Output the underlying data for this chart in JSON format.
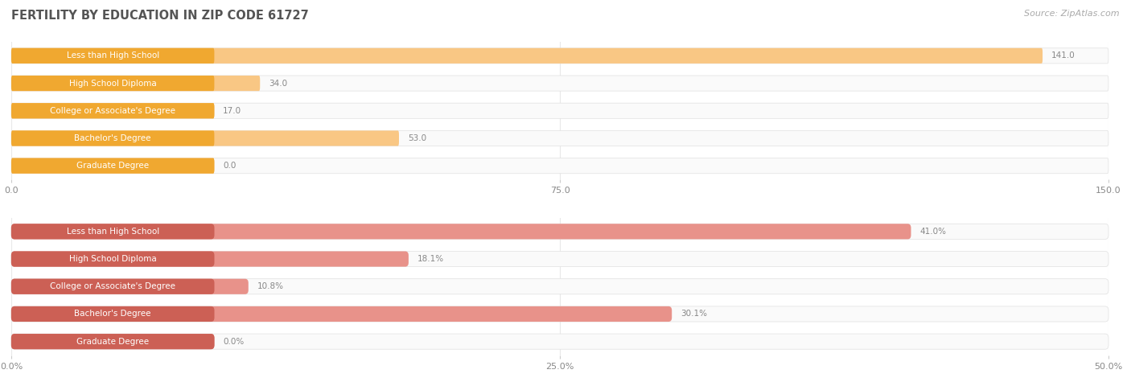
{
  "title": "FERTILITY BY EDUCATION IN ZIP CODE 61727",
  "source": "Source: ZipAtlas.com",
  "top_chart": {
    "categories": [
      "Less than High School",
      "High School Diploma",
      "College or Associate's Degree",
      "Bachelor's Degree",
      "Graduate Degree"
    ],
    "values": [
      141.0,
      34.0,
      17.0,
      53.0,
      0.0
    ],
    "value_labels": [
      "141.0",
      "34.0",
      "17.0",
      "53.0",
      "0.0"
    ],
    "xlim": [
      0,
      150
    ],
    "xticks": [
      0.0,
      75.0,
      150.0
    ],
    "xtick_labels": [
      "0.0",
      "75.0",
      "150.0"
    ],
    "bar_color": "#f9c784",
    "label_box_color": "#f0a830",
    "bar_bg_color": "#fafafa"
  },
  "bottom_chart": {
    "categories": [
      "Less than High School",
      "High School Diploma",
      "College or Associate's Degree",
      "Bachelor's Degree",
      "Graduate Degree"
    ],
    "values": [
      41.0,
      18.1,
      10.8,
      30.1,
      0.0
    ],
    "xlim": [
      0,
      50
    ],
    "xticks": [
      0.0,
      25.0,
      50.0
    ],
    "xtick_labels": [
      "0.0%",
      "25.0%",
      "50.0%"
    ],
    "bar_color": "#e8928a",
    "label_box_color": "#cc6055",
    "bar_bg_color": "#fafafa",
    "value_labels": [
      "41.0%",
      "18.1%",
      "10.8%",
      "30.1%",
      "0.0%"
    ]
  },
  "bg_color": "#ffffff",
  "grid_color": "#e8e8e8",
  "bar_height": 0.55,
  "label_fontsize": 7.5,
  "tick_fontsize": 8,
  "title_fontsize": 10.5,
  "source_fontsize": 8,
  "text_color_dark": "#666666",
  "text_color_light": "#ffffff"
}
